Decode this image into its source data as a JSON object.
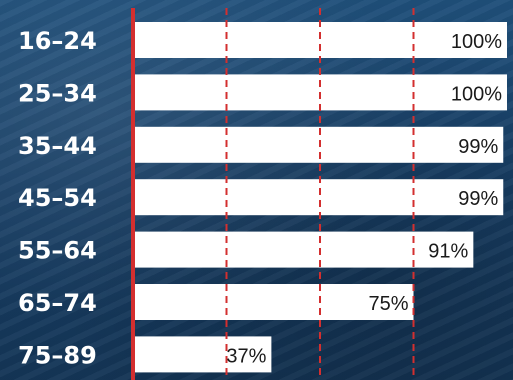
{
  "chart_data": {
    "type": "bar",
    "orientation": "horizontal",
    "categories": [
      "16–24",
      "25–34",
      "35–44",
      "45–54",
      "55–64",
      "65–74",
      "75–89"
    ],
    "values": [
      100,
      100,
      99,
      99,
      91,
      75,
      37
    ],
    "value_labels": [
      "100%",
      "100%",
      "99%",
      "99%",
      "91%",
      "75%",
      "37%"
    ],
    "xlim": [
      0,
      100
    ],
    "gridlines": [
      25,
      50,
      75
    ],
    "grid": true,
    "title": "",
    "xlabel": "",
    "ylabel": ""
  },
  "colors": {
    "background": "#1a4670",
    "bar": "#ffffff",
    "axis": "#d32f2f",
    "grid": "#d32f2f",
    "category_text": "#ffffff",
    "value_text": "#1a1a1a"
  }
}
